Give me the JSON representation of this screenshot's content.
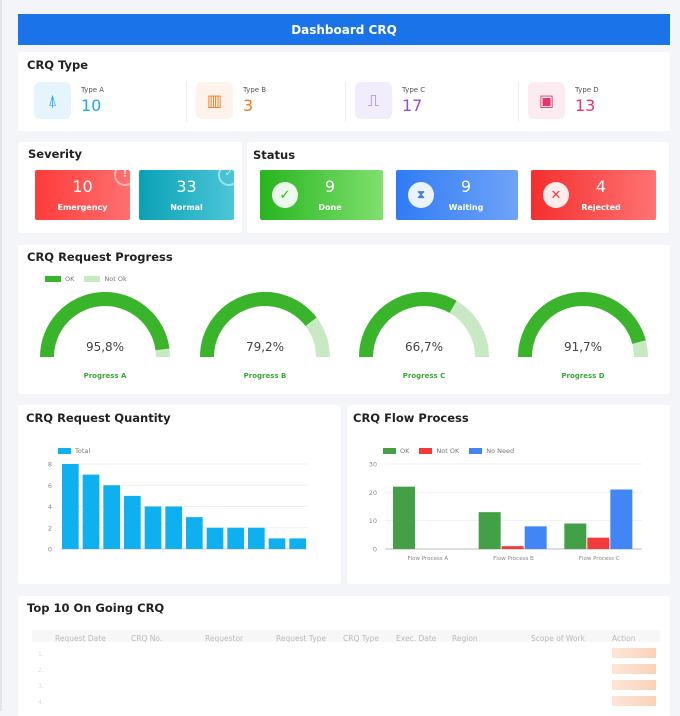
{
  "header": {
    "title": "Dashboard CRQ"
  },
  "crq_type": {
    "title": "CRQ Type",
    "items": [
      {
        "label": "Type A",
        "value": "10",
        "color": "#1aa8f0",
        "bg": "#e6f5fd",
        "icon": "antenna-icon"
      },
      {
        "label": "Type B",
        "value": "3",
        "color": "#f07a1a",
        "bg": "#fdf3ec",
        "icon": "building-icon"
      },
      {
        "label": "Type C",
        "value": "17",
        "color": "#8a4de0",
        "bg": "#f1edfc",
        "icon": "signal-wave-icon"
      },
      {
        "label": "Type D",
        "value": "13",
        "color": "#e8336b",
        "bg": "#fcecf1",
        "icon": "calendar-icon"
      }
    ]
  },
  "severity": {
    "title": "Severity",
    "items": [
      {
        "value": "10",
        "label": "Emergency",
        "icon": "exclamation-icon"
      },
      {
        "value": "33",
        "label": "Normal",
        "icon": "check-icon"
      }
    ]
  },
  "status": {
    "title": "Status",
    "items": [
      {
        "value": "9",
        "label": "Done",
        "icon": "check-icon"
      },
      {
        "value": "9",
        "label": "Waiting",
        "icon": "hourglass-icon"
      },
      {
        "value": "4",
        "label": "Rejected",
        "icon": "x-icon"
      }
    ]
  },
  "progress": {
    "title": "CRQ Request Progress",
    "legend": [
      "OK",
      "Not Ok"
    ],
    "colors": {
      "ok": "#3ab52b",
      "not_ok": "#c9e9c4"
    },
    "gauges": [
      {
        "label": "Progress A",
        "value_text": "95,8%",
        "percent": 95.8
      },
      {
        "label": "Progress B",
        "value_text": "79,2%",
        "percent": 79.2
      },
      {
        "label": "Progress C",
        "value_text": "66,7%",
        "percent": 66.7
      },
      {
        "label": "Progress D",
        "value_text": "91,7%",
        "percent": 91.7
      }
    ]
  },
  "chart_data": [
    {
      "type": "bar",
      "title": "CRQ Request Quantity",
      "legend": [
        "Total"
      ],
      "color": "#0eb0ef",
      "ylim": [
        0,
        8
      ],
      "yticks": [
        0,
        2,
        4,
        6,
        8
      ],
      "values": [
        8,
        7,
        6,
        5,
        4,
        4,
        3,
        2,
        2,
        2,
        1,
        1
      ],
      "grid": true,
      "legend_placement": "top-left"
    },
    {
      "type": "bar",
      "title": "CRQ Flow Process",
      "categories": [
        "Flow Process A",
        "Flow Process B",
        "Flow Process C"
      ],
      "ylim": [
        0,
        30
      ],
      "yticks": [
        0,
        10,
        20,
        30
      ],
      "grid": true,
      "legend_placement": "top-left",
      "series": [
        {
          "name": "OK",
          "color": "#43a047",
          "values": [
            22,
            13,
            9
          ]
        },
        {
          "name": "Not OK",
          "color": "#f23a3a",
          "values": [
            0,
            1,
            4
          ]
        },
        {
          "name": "No Need",
          "color": "#4285f4",
          "values": [
            0,
            8,
            21
          ]
        }
      ]
    }
  ],
  "table": {
    "title": "Top 10 On Going CRQ",
    "columns": [
      "Request Date",
      "CRQ No.",
      "Requestor",
      "Request Type",
      "CRQ Type",
      "Exec. Date",
      "Region",
      "Scope of Work",
      "Action"
    ],
    "row_numbers": [
      "1.",
      "2.",
      "3.",
      "4."
    ]
  }
}
